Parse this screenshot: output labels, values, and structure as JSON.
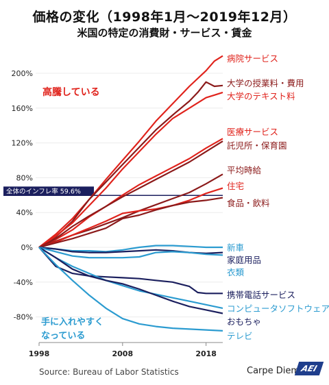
{
  "header": {
    "title": "価格の変化（1998年1月〜2019年12月）",
    "subtitle": "米国の特定の消費財・サービス・賃金"
  },
  "footer": {
    "source": "Source: Bureau of Labor Statistics",
    "brand": "Carpe Diem",
    "logo": "AEI"
  },
  "colors": {
    "red": "#e0231c",
    "dark_red": "#8b1a1a",
    "navy": "#1b1f5e",
    "light_blue": "#2b9bd0",
    "inflation_line": "#1b1f5e"
  },
  "chart_data": {
    "type": "line",
    "x_range": [
      1998,
      2020
    ],
    "ylim": [
      -100,
      220
    ],
    "yticks": [
      "200%",
      "160%",
      "120%",
      "80%",
      "40%",
      "0%",
      "-40%",
      "-80%"
    ],
    "ytick_values": [
      200,
      160,
      120,
      80,
      40,
      0,
      -40,
      -80
    ],
    "xticks": [
      "1998",
      "2008",
      "2018"
    ],
    "xtick_values": [
      1998,
      2008,
      2018
    ],
    "annotations": {
      "up": "高騰している",
      "down_line1": "手に入れやすく",
      "down_line2": "なっている"
    },
    "reference_line": {
      "label": "全体のインフレ率 59.6%",
      "value": 59.6
    },
    "series": [
      {
        "name": "病院サービス",
        "color": "red",
        "points": [
          [
            1998,
            0
          ],
          [
            2000,
            15
          ],
          [
            2002,
            33
          ],
          [
            2004,
            55
          ],
          [
            2006,
            78
          ],
          [
            2008,
            100
          ],
          [
            2010,
            122
          ],
          [
            2012,
            145
          ],
          [
            2014,
            165
          ],
          [
            2016,
            185
          ],
          [
            2018,
            203
          ],
          [
            2019,
            214
          ],
          [
            2020,
            220
          ]
        ]
      },
      {
        "name": "大学の授業料・費用",
        "color": "dark_red",
        "points": [
          [
            1998,
            0
          ],
          [
            2000,
            12
          ],
          [
            2002,
            30
          ],
          [
            2004,
            55
          ],
          [
            2006,
            75
          ],
          [
            2008,
            95
          ],
          [
            2010,
            115
          ],
          [
            2012,
            135
          ],
          [
            2014,
            152
          ],
          [
            2016,
            168
          ],
          [
            2017,
            178
          ],
          [
            2018,
            190
          ],
          [
            2019,
            185
          ],
          [
            2020,
            186
          ]
        ]
      },
      {
        "name": "大学のテキスト料",
        "color": "red",
        "points": [
          [
            1998,
            0
          ],
          [
            2000,
            13
          ],
          [
            2002,
            28
          ],
          [
            2004,
            48
          ],
          [
            2006,
            68
          ],
          [
            2008,
            90
          ],
          [
            2010,
            110
          ],
          [
            2012,
            130
          ],
          [
            2014,
            148
          ],
          [
            2016,
            160
          ],
          [
            2018,
            172
          ],
          [
            2019,
            175
          ],
          [
            2020,
            178
          ]
        ]
      },
      {
        "name": "医療サービス",
        "color": "red",
        "points": [
          [
            1998,
            0
          ],
          [
            2000,
            9
          ],
          [
            2002,
            20
          ],
          [
            2004,
            35
          ],
          [
            2006,
            47
          ],
          [
            2008,
            60
          ],
          [
            2010,
            72
          ],
          [
            2012,
            82
          ],
          [
            2014,
            92
          ],
          [
            2016,
            102
          ],
          [
            2018,
            114
          ],
          [
            2020,
            125
          ]
        ]
      },
      {
        "name": "託児所・保育園",
        "color": "dark_red",
        "points": [
          [
            1998,
            0
          ],
          [
            2000,
            10
          ],
          [
            2002,
            24
          ],
          [
            2004,
            36
          ],
          [
            2006,
            47
          ],
          [
            2008,
            58
          ],
          [
            2010,
            68
          ],
          [
            2012,
            78
          ],
          [
            2014,
            88
          ],
          [
            2016,
            98
          ],
          [
            2018,
            110
          ],
          [
            2020,
            122
          ]
        ]
      },
      {
        "name": "平均時給",
        "color": "dark_red",
        "points": [
          [
            1998,
            0
          ],
          [
            2000,
            7
          ],
          [
            2002,
            14
          ],
          [
            2004,
            20
          ],
          [
            2006,
            27
          ],
          [
            2008,
            34
          ],
          [
            2010,
            42
          ],
          [
            2012,
            49
          ],
          [
            2014,
            56
          ],
          [
            2016,
            63
          ],
          [
            2018,
            73
          ],
          [
            2020,
            84
          ]
        ]
      },
      {
        "name": "住宅",
        "color": "red",
        "points": [
          [
            1998,
            0
          ],
          [
            2000,
            6
          ],
          [
            2002,
            14
          ],
          [
            2004,
            22
          ],
          [
            2006,
            30
          ],
          [
            2008,
            39
          ],
          [
            2010,
            42
          ],
          [
            2012,
            44
          ],
          [
            2014,
            48
          ],
          [
            2016,
            54
          ],
          [
            2018,
            62
          ],
          [
            2020,
            68
          ]
        ]
      },
      {
        "name": "食品・飲料",
        "color": "dark_red",
        "points": [
          [
            1998,
            0
          ],
          [
            2000,
            5
          ],
          [
            2002,
            10
          ],
          [
            2004,
            16
          ],
          [
            2006,
            22
          ],
          [
            2008,
            33
          ],
          [
            2010,
            37
          ],
          [
            2012,
            43
          ],
          [
            2014,
            48
          ],
          [
            2016,
            52
          ],
          [
            2018,
            54
          ],
          [
            2020,
            57
          ]
        ]
      },
      {
        "name": "新車",
        "color": "light_blue",
        "points": [
          [
            1998,
            0
          ],
          [
            2000,
            -2
          ],
          [
            2002,
            -4
          ],
          [
            2004,
            -4
          ],
          [
            2006,
            -5
          ],
          [
            2008,
            -3
          ],
          [
            2010,
            0
          ],
          [
            2012,
            2
          ],
          [
            2014,
            2
          ],
          [
            2016,
            1
          ],
          [
            2018,
            0
          ],
          [
            2020,
            0
          ]
        ]
      },
      {
        "name": "家庭用品",
        "color": "navy",
        "points": [
          [
            1998,
            0
          ],
          [
            2000,
            -2
          ],
          [
            2002,
            -5
          ],
          [
            2004,
            -6
          ],
          [
            2006,
            -6
          ],
          [
            2008,
            -5
          ],
          [
            2010,
            -4
          ],
          [
            2012,
            -3
          ],
          [
            2014,
            -4
          ],
          [
            2016,
            -6
          ],
          [
            2018,
            -7
          ],
          [
            2020,
            -6
          ]
        ]
      },
      {
        "name": "衣類",
        "color": "light_blue",
        "points": [
          [
            1998,
            0
          ],
          [
            2000,
            -5
          ],
          [
            2002,
            -10
          ],
          [
            2004,
            -12
          ],
          [
            2006,
            -12
          ],
          [
            2008,
            -12
          ],
          [
            2010,
            -11
          ],
          [
            2012,
            -6
          ],
          [
            2014,
            -5
          ],
          [
            2016,
            -6
          ],
          [
            2018,
            -8
          ],
          [
            2020,
            -9
          ]
        ]
      },
      {
        "name": "携帯電話サービス",
        "color": "navy",
        "points": [
          [
            1998,
            0
          ],
          [
            2000,
            -22
          ],
          [
            2002,
            -30
          ],
          [
            2004,
            -33
          ],
          [
            2006,
            -34
          ],
          [
            2008,
            -35
          ],
          [
            2010,
            -36
          ],
          [
            2012,
            -38
          ],
          [
            2014,
            -40
          ],
          [
            2016,
            -45
          ],
          [
            2017,
            -52
          ],
          [
            2018,
            -53
          ],
          [
            2020,
            -53
          ]
        ]
      },
      {
        "name": "コンピュータソフトウェア",
        "color": "light_blue",
        "points": [
          [
            1998,
            0
          ],
          [
            2000,
            -12
          ],
          [
            2002,
            -22
          ],
          [
            2004,
            -30
          ],
          [
            2006,
            -38
          ],
          [
            2008,
            -44
          ],
          [
            2010,
            -50
          ],
          [
            2012,
            -54
          ],
          [
            2014,
            -58
          ],
          [
            2016,
            -62
          ],
          [
            2018,
            -66
          ],
          [
            2020,
            -70
          ]
        ]
      },
      {
        "name": "おもちゃ",
        "color": "navy",
        "points": [
          [
            1998,
            0
          ],
          [
            2000,
            -12
          ],
          [
            2002,
            -25
          ],
          [
            2004,
            -33
          ],
          [
            2006,
            -38
          ],
          [
            2008,
            -42
          ],
          [
            2010,
            -48
          ],
          [
            2012,
            -55
          ],
          [
            2014,
            -62
          ],
          [
            2016,
            -68
          ],
          [
            2018,
            -72
          ],
          [
            2020,
            -76
          ]
        ]
      },
      {
        "name": "テレビ",
        "color": "light_blue",
        "points": [
          [
            1998,
            0
          ],
          [
            2000,
            -20
          ],
          [
            2002,
            -38
          ],
          [
            2004,
            -55
          ],
          [
            2006,
            -70
          ],
          [
            2008,
            -82
          ],
          [
            2010,
            -88
          ],
          [
            2012,
            -91
          ],
          [
            2014,
            -93
          ],
          [
            2016,
            -94
          ],
          [
            2018,
            -95
          ],
          [
            2020,
            -96
          ]
        ]
      }
    ]
  }
}
